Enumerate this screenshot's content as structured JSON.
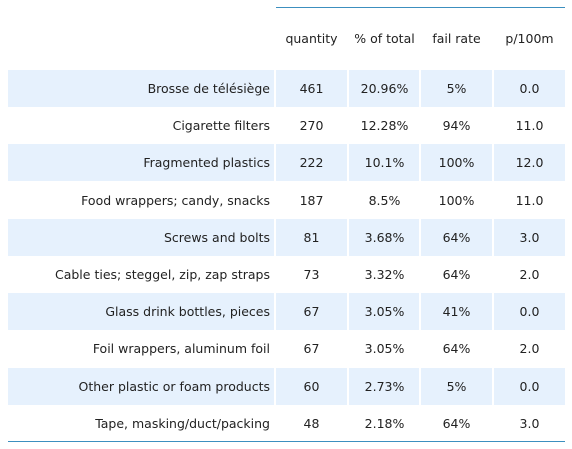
{
  "chart_data": {
    "type": "table",
    "columns": [
      "quantity",
      "% of total",
      "fail rate",
      "p/100m"
    ],
    "rows": [
      {
        "label": "Brosse de télésiège",
        "values": [
          "461",
          "20.96%",
          "5%",
          "0.0"
        ]
      },
      {
        "label": "Cigarette filters",
        "values": [
          "270",
          "12.28%",
          "94%",
          "11.0"
        ]
      },
      {
        "label": "Fragmented plastics",
        "values": [
          "222",
          "10.1%",
          "100%",
          "12.0"
        ]
      },
      {
        "label": "Food wrappers; candy, snacks",
        "values": [
          "187",
          "8.5%",
          "100%",
          "11.0"
        ]
      },
      {
        "label": "Screws and bolts",
        "values": [
          "81",
          "3.68%",
          "64%",
          "3.0"
        ]
      },
      {
        "label": "Cable ties; steggel, zip, zap straps",
        "values": [
          "73",
          "3.32%",
          "64%",
          "2.0"
        ]
      },
      {
        "label": "Glass drink bottles, pieces",
        "values": [
          "67",
          "3.05%",
          "41%",
          "0.0"
        ]
      },
      {
        "label": "Foil wrappers, aluminum foil",
        "values": [
          "67",
          "3.05%",
          "64%",
          "2.0"
        ]
      },
      {
        "label": "Other plastic or foam products",
        "values": [
          "60",
          "2.73%",
          "5%",
          "0.0"
        ]
      },
      {
        "label": "Tape, masking/duct/packing",
        "values": [
          "48",
          "2.18%",
          "64%",
          "3.0"
        ]
      }
    ],
    "colors": {
      "row_shade": "#e6f1fd",
      "rule": "#3c8fbf",
      "text": "#222222"
    }
  }
}
